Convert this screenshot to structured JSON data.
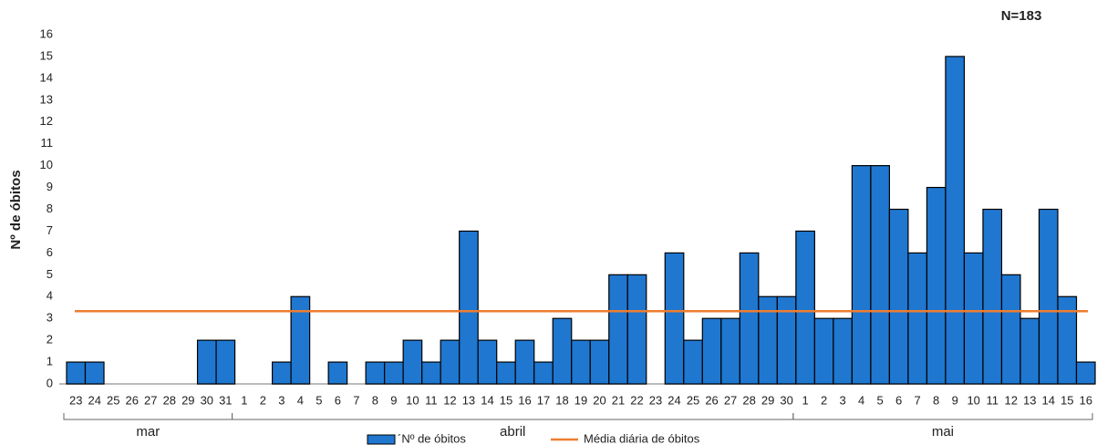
{
  "chart_data": {
    "type": "bar",
    "annotation": "N=183",
    "ylabel": "Nº de óbitos",
    "ylim": [
      0,
      16
    ],
    "yticks": [
      0,
      1,
      2,
      3,
      4,
      5,
      6,
      7,
      8,
      9,
      10,
      11,
      12,
      13,
      14,
      15,
      16
    ],
    "bar_name": "´Nº de óbitos",
    "color": "#1f77d0",
    "mean_line": {
      "name": "Média diária de óbitos",
      "value": 3.33,
      "color": "#ed7d31"
    },
    "groups": [
      {
        "label": "mar",
        "categories": [
          "23",
          "24",
          "25",
          "26",
          "27",
          "28",
          "29",
          "30",
          "31"
        ],
        "values": [
          1,
          1,
          0,
          0,
          0,
          0,
          0,
          2,
          2
        ]
      },
      {
        "label": "abril",
        "categories": [
          "1",
          "2",
          "3",
          "4",
          "5",
          "6",
          "7",
          "8",
          "9",
          "10",
          "11",
          "12",
          "13",
          "14",
          "15",
          "16",
          "17",
          "18",
          "19",
          "20",
          "21",
          "22",
          "23",
          "24",
          "25",
          "26",
          "27",
          "28",
          "29",
          "30"
        ],
        "values": [
          0,
          0,
          1,
          4,
          0,
          1,
          0,
          1,
          1,
          2,
          1,
          2,
          7,
          2,
          1,
          2,
          1,
          3,
          2,
          2,
          5,
          5,
          0,
          6,
          2,
          3,
          3,
          6,
          4,
          4
        ]
      },
      {
        "label": "mai",
        "categories": [
          "1",
          "2",
          "3",
          "4",
          "5",
          "6",
          "7",
          "8",
          "9",
          "10",
          "11",
          "12",
          "13",
          "14",
          "15",
          "16"
        ],
        "values": [
          7,
          3,
          3,
          10,
          10,
          8,
          6,
          9,
          15,
          6,
          8,
          5,
          3,
          8,
          4,
          1
        ]
      }
    ]
  }
}
